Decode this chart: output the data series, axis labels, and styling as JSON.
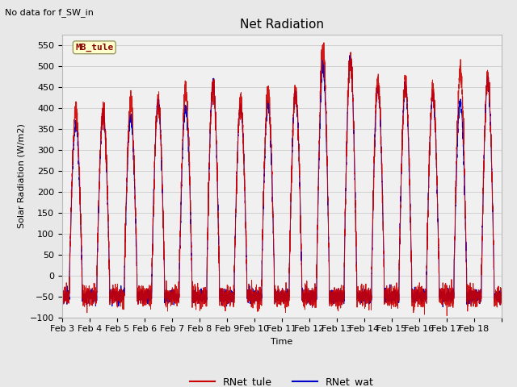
{
  "title": "Net Radiation",
  "suptitle": "No data for f_SW_in",
  "ylabel": "Solar Radiation (W/m2)",
  "xlabel": "Time",
  "ylim": [
    -100,
    575
  ],
  "yticks": [
    -100,
    -50,
    0,
    50,
    100,
    150,
    200,
    250,
    300,
    350,
    400,
    450,
    500,
    550
  ],
  "xtick_labels": [
    "Feb 3",
    "Feb 4",
    "Feb 5",
    "Feb 6",
    "Feb 7",
    "Feb 8",
    "Feb 9",
    "Feb 10",
    "Feb 11",
    "Feb 12",
    "Feb 13",
    "Feb 14",
    "Feb 15",
    "Feb 16",
    "Feb 17",
    "Feb 18"
  ],
  "legend_labels": [
    "RNet_tule",
    "RNet_wat"
  ],
  "line_color_tule": "#cc0000",
  "line_color_wat": "#0000cc",
  "annotation_text": "MB_tule",
  "annotation_color": "#8b0000",
  "background_color": "#e8e8e8",
  "plot_bg_color": "#f0f0f0",
  "n_days": 16,
  "points_per_day": 288,
  "title_fontsize": 11,
  "label_fontsize": 8,
  "tick_fontsize": 8
}
